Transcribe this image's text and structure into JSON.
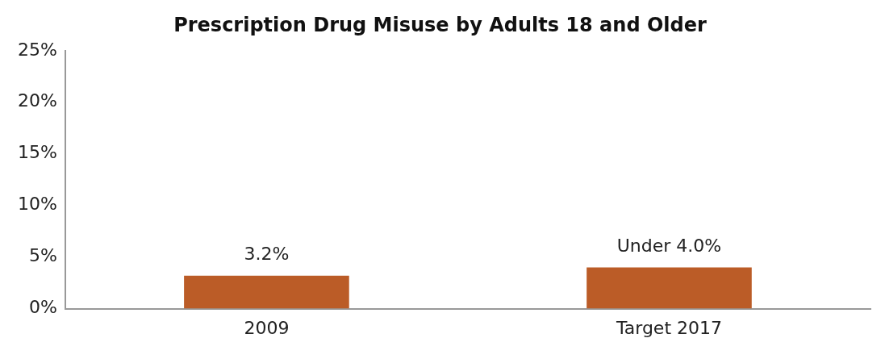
{
  "chart_data": {
    "type": "bar",
    "title": "Prescription Drug Misuse by Adults 18 and Older",
    "categories": [
      "2009",
      "Target 2017"
    ],
    "values": [
      3.2,
      4.0
    ],
    "colors": [
      "#bb5c27",
      "#bb5c27"
    ],
    "value_labels": [
      "3.2%",
      "Under 4.0%"
    ],
    "ylim": [
      0,
      25
    ],
    "yticks": [
      {
        "value": 0,
        "label": "0%"
      },
      {
        "value": 5,
        "label": "5%"
      },
      {
        "value": 10,
        "label": "10%"
      },
      {
        "value": 15,
        "label": "15%"
      },
      {
        "value": 20,
        "label": "20%"
      },
      {
        "value": 25,
        "label": "25%"
      }
    ],
    "grid": false,
    "legend": false
  }
}
